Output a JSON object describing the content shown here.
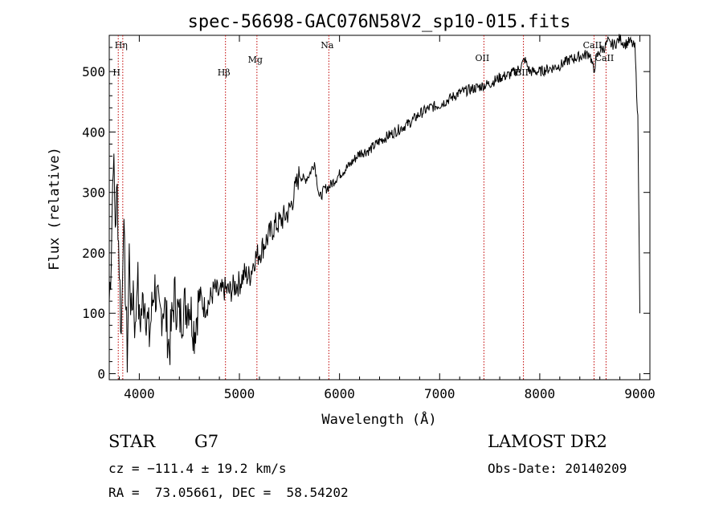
{
  "chart_data": {
    "type": "line",
    "title": "spec-56698-GAC076N58V2_sp10-015.fits",
    "xlabel": "Wavelength (Å)",
    "ylabel": "Flux (relative)",
    "xlim": [
      3700,
      9100
    ],
    "ylim": [
      -10,
      560
    ],
    "x_ticks": [
      4000,
      5000,
      6000,
      7000,
      8000,
      9000
    ],
    "y_ticks": [
      0,
      100,
      200,
      300,
      400,
      500
    ],
    "series": [
      {
        "x": [
          3700,
          3720,
          3740,
          3760,
          3780,
          3800,
          3820,
          3840,
          3860,
          3880,
          3900,
          3920,
          3940,
          3960,
          3980,
          4000,
          4050,
          4100,
          4150,
          4200,
          4250,
          4300,
          4350,
          4400,
          4450,
          4500,
          4550,
          4600,
          4650,
          4700,
          4750,
          4800,
          4850,
          4900,
          4950,
          5000,
          5050,
          5100,
          5150,
          5200,
          5250,
          5300,
          5350,
          5400,
          5450,
          5500,
          5550,
          5600,
          5650,
          5700,
          5750,
          5800,
          5850,
          5900,
          5950,
          6000,
          6100,
          6200,
          6300,
          6400,
          6500,
          6600,
          6700,
          6800,
          6900,
          7000,
          7100,
          7200,
          7300,
          7400,
          7500,
          7600,
          7700,
          7800,
          7850,
          7900,
          8000,
          8100,
          8200,
          8300,
          8400,
          8500,
          8540,
          8560,
          8600,
          8650,
          8680,
          8700,
          8750,
          8800,
          8850,
          8900,
          8950,
          8980,
          9000
        ],
        "y": [
          120,
          200,
          370,
          250,
          300,
          180,
          60,
          250,
          150,
          30,
          200,
          90,
          150,
          60,
          180,
          80,
          130,
          60,
          150,
          90,
          120,
          40,
          130,
          90,
          110,
          120,
          70,
          130,
          110,
          120,
          140,
          130,
          140,
          135,
          145,
          150,
          165,
          160,
          190,
          200,
          215,
          230,
          245,
          250,
          260,
          270,
          300,
          330,
          320,
          330,
          350,
          290,
          305,
          310,
          320,
          330,
          345,
          365,
          370,
          385,
          395,
          405,
          415,
          430,
          440,
          445,
          455,
          465,
          470,
          475,
          480,
          490,
          495,
          505,
          520,
          500,
          500,
          505,
          510,
          520,
          525,
          530,
          500,
          520,
          535,
          540,
          550,
          545,
          545,
          555,
          545,
          550,
          540,
          420,
          100
        ],
        "color": "#000000"
      }
    ],
    "lines": [
      {
        "label": "Hη",
        "x": 3835
      },
      {
        "label": "H",
        "x": 3790
      },
      {
        "label": "Hβ",
        "x": 4861
      },
      {
        "label": "Mg",
        "x": 5175
      },
      {
        "label": "Na",
        "x": 5893
      },
      {
        "label": "OII",
        "x": 7442
      },
      {
        "label": "BII",
        "x": 7837
      },
      {
        "label": "CaII",
        "x": 8542
      },
      {
        "label": "CaII",
        "x": 8662
      }
    ],
    "grid": false
  },
  "info": {
    "class_label": "STAR",
    "subclass": "G7",
    "survey": "LAMOST DR2",
    "cz": "cz = −111.4 ± 19.2 km/s",
    "obs_date": "Obs-Date: 20140209",
    "radec": "RA =  73.05661, DEC =  58.54202"
  }
}
